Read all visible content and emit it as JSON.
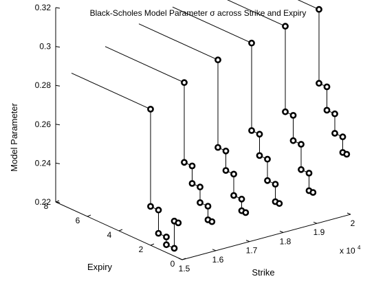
{
  "chart_data": {
    "type": "line3d",
    "title": "Black-Scholes Model Parameter σ across Strike and Expiry",
    "xlabel": "Strike",
    "ylabel": "Expiry",
    "zlabel": "Model Parameter",
    "x_multiplier": "x 10",
    "x_multiplier_exp": "4",
    "xlim": [
      15000,
      20000
    ],
    "ylim": [
      0,
      8
    ],
    "zlim": [
      0.22,
      0.32
    ],
    "x_ticks": [
      "1.5",
      "1.6",
      "1.7",
      "1.8",
      "1.9",
      "2"
    ],
    "y_ticks": [
      "0",
      "2",
      "4",
      "6",
      "8"
    ],
    "z_ticks": [
      "0.22",
      "0.24",
      "0.26",
      "0.28",
      "0.3",
      "0.32"
    ],
    "grid": false,
    "series": [
      {
        "strike": 15000,
        "points": [
          {
            "expiry": 7.0,
            "value": 0.29
          },
          {
            "expiry": 2.0,
            "value": 0.29
          },
          {
            "expiry": 2.0,
            "value": 0.24
          },
          {
            "expiry": 1.5,
            "value": 0.24
          },
          {
            "expiry": 1.5,
            "value": 0.228
          },
          {
            "expiry": 1.0,
            "value": 0.228
          },
          {
            "expiry": 1.0,
            "value": 0.224
          },
          {
            "expiry": 0.5,
            "value": 0.224
          },
          {
            "expiry": 0.5,
            "value": 0.238
          },
          {
            "expiry": 0.25,
            "value": 0.238
          }
        ]
      },
      {
        "strike": 16000,
        "points": [
          {
            "expiry": 7.0,
            "value": 0.299
          },
          {
            "expiry": 2.0,
            "value": 0.299
          },
          {
            "expiry": 2.0,
            "value": 0.258
          },
          {
            "expiry": 1.5,
            "value": 0.258
          },
          {
            "expiry": 1.5,
            "value": 0.249
          },
          {
            "expiry": 1.0,
            "value": 0.249
          },
          {
            "expiry": 1.0,
            "value": 0.241
          },
          {
            "expiry": 0.5,
            "value": 0.241
          },
          {
            "expiry": 0.5,
            "value": 0.234
          },
          {
            "expiry": 0.25,
            "value": 0.234
          }
        ]
      },
      {
        "strike": 17000,
        "points": [
          {
            "expiry": 7.0,
            "value": 0.306
          },
          {
            "expiry": 2.0,
            "value": 0.306
          },
          {
            "expiry": 2.0,
            "value": 0.261
          },
          {
            "expiry": 1.5,
            "value": 0.261
          },
          {
            "expiry": 1.5,
            "value": 0.251
          },
          {
            "expiry": 1.0,
            "value": 0.251
          },
          {
            "expiry": 1.0,
            "value": 0.24
          },
          {
            "expiry": 0.5,
            "value": 0.24
          },
          {
            "expiry": 0.5,
            "value": 0.234
          },
          {
            "expiry": 0.25,
            "value": 0.234
          }
        ]
      },
      {
        "strike": 18000,
        "points": [
          {
            "expiry": 7.0,
            "value": 0.31
          },
          {
            "expiry": 2.0,
            "value": 0.31
          },
          {
            "expiry": 2.0,
            "value": 0.265
          },
          {
            "expiry": 1.5,
            "value": 0.265
          },
          {
            "expiry": 1.5,
            "value": 0.254
          },
          {
            "expiry": 1.0,
            "value": 0.254
          },
          {
            "expiry": 1.0,
            "value": 0.243
          },
          {
            "expiry": 0.5,
            "value": 0.243
          },
          {
            "expiry": 0.5,
            "value": 0.234
          },
          {
            "expiry": 0.25,
            "value": 0.234
          }
        ]
      },
      {
        "strike": 19000,
        "points": [
          {
            "expiry": 7.0,
            "value": 0.314
          },
          {
            "expiry": 2.0,
            "value": 0.314
          },
          {
            "expiry": 2.0,
            "value": 0.27
          },
          {
            "expiry": 1.5,
            "value": 0.27
          },
          {
            "expiry": 1.5,
            "value": 0.257
          },
          {
            "expiry": 1.0,
            "value": 0.257
          },
          {
            "expiry": 1.0,
            "value": 0.244
          },
          {
            "expiry": 0.5,
            "value": 0.244
          },
          {
            "expiry": 0.5,
            "value": 0.235
          },
          {
            "expiry": 0.25,
            "value": 0.235
          }
        ]
      },
      {
        "strike": 20000,
        "points": [
          {
            "expiry": 7.0,
            "value": 0.318
          },
          {
            "expiry": 2.0,
            "value": 0.318
          },
          {
            "expiry": 2.0,
            "value": 0.28
          },
          {
            "expiry": 1.5,
            "value": 0.28
          },
          {
            "expiry": 1.5,
            "value": 0.268
          },
          {
            "expiry": 1.0,
            "value": 0.268
          },
          {
            "expiry": 1.0,
            "value": 0.258
          },
          {
            "expiry": 0.5,
            "value": 0.258
          },
          {
            "expiry": 0.5,
            "value": 0.25
          },
          {
            "expiry": 0.25,
            "value": 0.25
          }
        ]
      }
    ]
  }
}
